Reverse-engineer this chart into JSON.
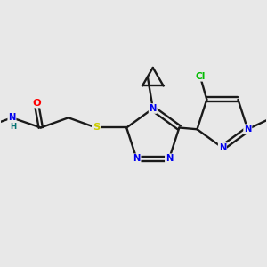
{
  "background_color": "#e8e8e8",
  "bond_color": "#1a1a1a",
  "atom_colors": {
    "O": "#ff0000",
    "N": "#0000ee",
    "S": "#cccc00",
    "Cl": "#00bb00",
    "H": "#007070",
    "C": "#1a1a1a"
  },
  "figsize": [
    3.0,
    3.0
  ],
  "dpi": 100
}
